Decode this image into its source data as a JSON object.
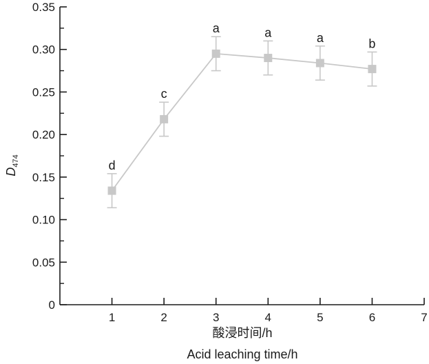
{
  "chart_data": {
    "type": "line",
    "title": "",
    "xlabel": "酸浸时间/h",
    "xlabel_en": "Acid leaching time/h",
    "ylabel": "D",
    "ylabel_sub": "474",
    "xlim": [
      0,
      7
    ],
    "ylim": [
      0,
      0.35
    ],
    "x_ticks": [
      "1",
      "2",
      "3",
      "4",
      "5",
      "6",
      "7"
    ],
    "y_ticks": [
      "0",
      "0.05",
      "0.10",
      "0.15",
      "0.20",
      "0.25",
      "0.30",
      "0.35"
    ],
    "grid": false,
    "series": [
      {
        "color": "#c8c8c8",
        "points": [
          {
            "x": 1,
            "y": 0.134,
            "err": 0.02,
            "label": "d"
          },
          {
            "x": 2,
            "y": 0.218,
            "err": 0.02,
            "label": "c"
          },
          {
            "x": 3,
            "y": 0.295,
            "err": 0.02,
            "label": "a"
          },
          {
            "x": 4,
            "y": 0.29,
            "err": 0.02,
            "label": "a"
          },
          {
            "x": 5,
            "y": 0.284,
            "err": 0.02,
            "label": "a"
          },
          {
            "x": 6,
            "y": 0.277,
            "err": 0.02,
            "label": "b"
          }
        ]
      }
    ]
  }
}
